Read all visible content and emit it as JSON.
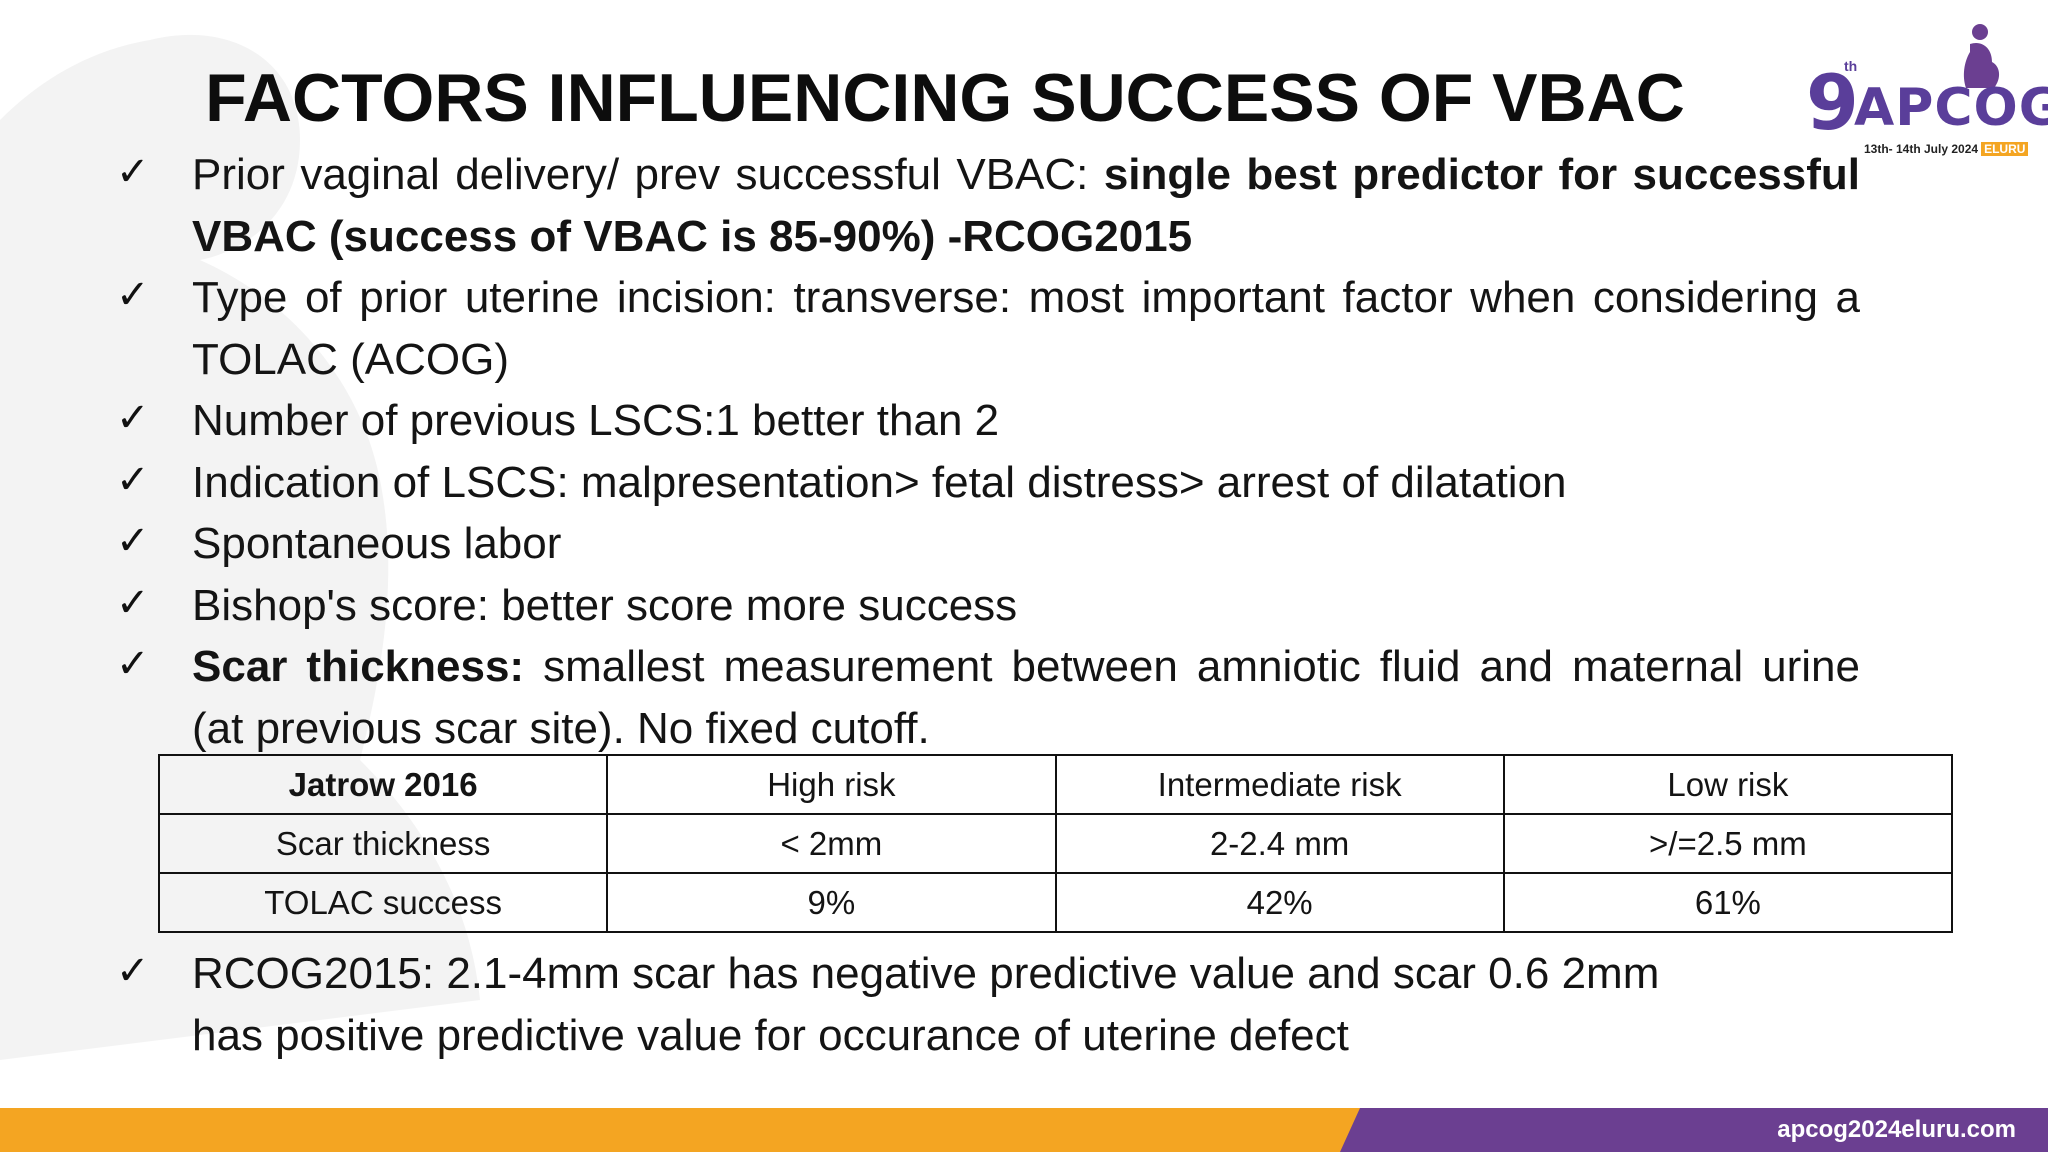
{
  "slide": {
    "title": "FACTORS INFLUENCING SUCCESS OF VBAC"
  },
  "logo": {
    "numeral": "9",
    "superscript": "th",
    "name": "APCOG",
    "dates": "13th- 14th July 2024",
    "city": "ELURU"
  },
  "bullets": [
    {
      "text": "Prior vaginal delivery/ prev successful VBAC: ",
      "bold": "single best predictor for successful VBAC (success of VBAC is 85-90%) -RCOG2015"
    },
    {
      "text": "Type of prior uterine incision: transverse: most important factor when considering a TOLAC (ACOG)"
    },
    {
      "text": "Number of previous LSCS:1 better than 2"
    },
    {
      "text": "Indication of LSCS: malpresentation> fetal distress> arrest of dilatation"
    },
    {
      "text": "Spontaneous labor"
    },
    {
      "text": "Bishop's score: better score more success"
    },
    {
      "bold": "Scar thickness:",
      "text": " smallest measurement between amniotic fluid and maternal urine (at previous scar site). No fixed cutoff."
    }
  ],
  "table": {
    "headers": [
      "Jatrow 2016",
      "High risk",
      "Intermediate risk",
      "Low risk"
    ],
    "rows": [
      [
        "Scar thickness",
        "< 2mm",
        "2-2.4 mm",
        ">/=2.5 mm"
      ],
      [
        "TOLAC success",
        "9%",
        "42%",
        "61%"
      ]
    ]
  },
  "last_bullet": {
    "line1": "RCOG2015: 2.1-4mm scar has negative predictive value and scar 0.6 2mm",
    "line2": "has positive predictive value for occurance of uterine defect"
  },
  "footer": {
    "url": "apcog2024eluru.com"
  },
  "colors": {
    "footer_orange": "#f4a522",
    "footer_purple": "#6b3f91",
    "logo_purple": "#5a3e9a"
  },
  "icons": {
    "bullet": "check-mark-icon"
  }
}
